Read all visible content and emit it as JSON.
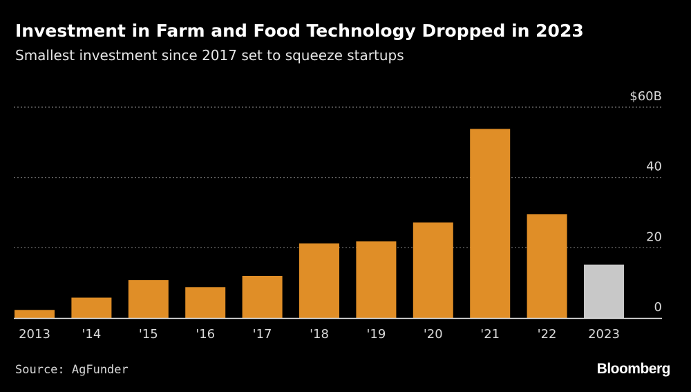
{
  "title": "Investment in Farm and Food Technology Dropped in 2023",
  "subtitle": "Smallest investment since 2017 set to squeeze startups",
  "source": "Source: AgFunder",
  "logo": "Bloomberg",
  "colors": {
    "background": "#000000",
    "bar": "#e08e27",
    "highlight_bar": "#c8c8c8",
    "grid": "#7a7a7a"
  },
  "chart_data": {
    "type": "bar",
    "categories": [
      "2013",
      "'14",
      "'15",
      "'16",
      "'17",
      "'18",
      "'19",
      "'20",
      "'21",
      "'22",
      "2023"
    ],
    "values": [
      2.3,
      5.8,
      10.8,
      8.8,
      12.0,
      21.2,
      21.8,
      27.2,
      53.8,
      29.5,
      15.2
    ],
    "highlight_index": 10,
    "y_ticks": [
      0,
      20,
      40,
      60
    ],
    "y_tick_labels": [
      "0",
      "20",
      "40",
      "$60B"
    ],
    "ylim": [
      0,
      60
    ],
    "xlabel": "",
    "ylabel": "",
    "grid": true,
    "y_axis_position": "right"
  }
}
